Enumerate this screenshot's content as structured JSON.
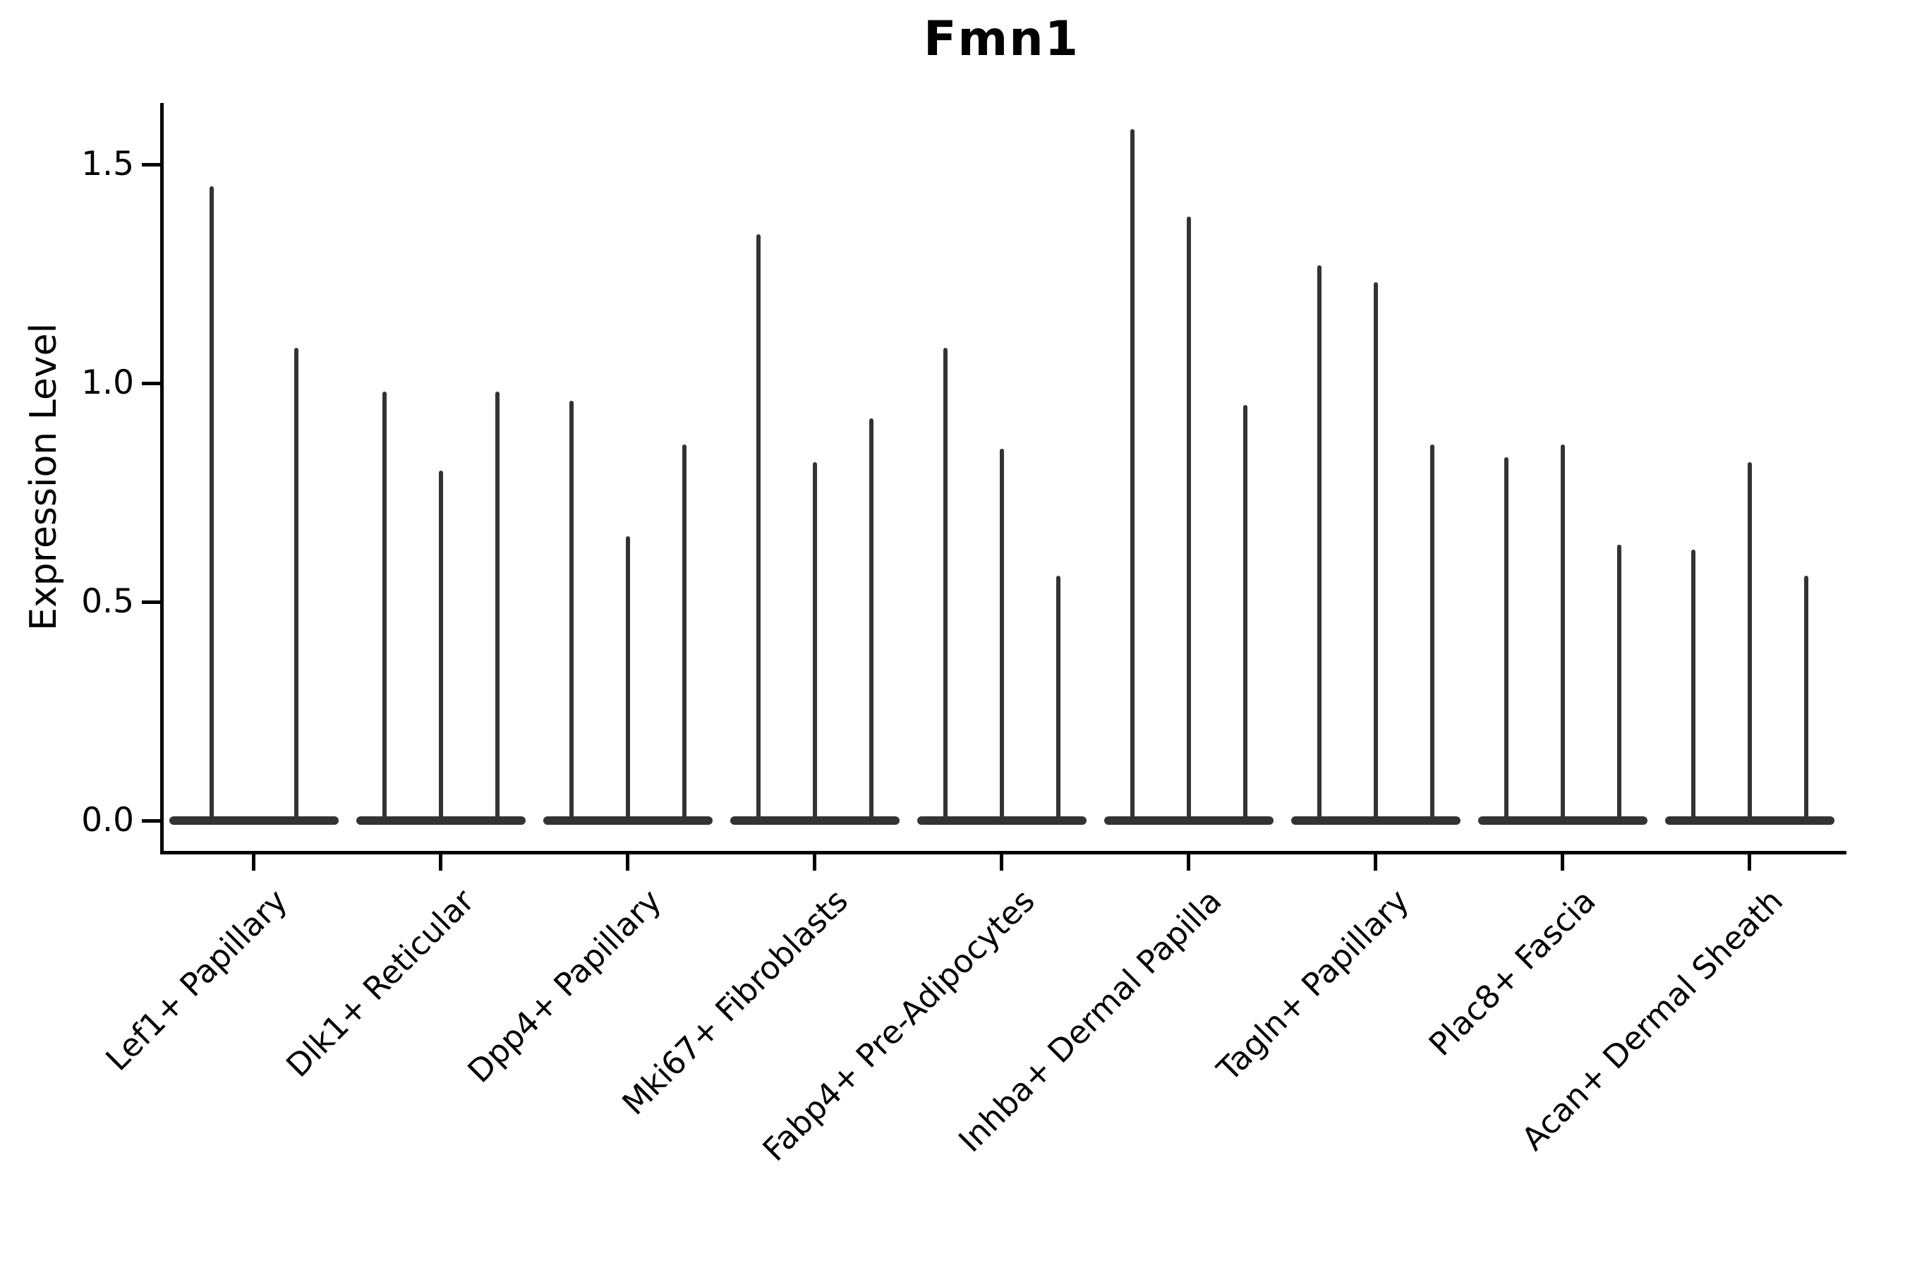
{
  "title": "Fmn1",
  "y_axis": {
    "label": "Expression Level",
    "tick_labels": [
      "0.0",
      "0.5",
      "1.0",
      "1.5"
    ]
  },
  "chart_data": {
    "type": "violin",
    "title": "Fmn1",
    "ylabel": "Expression Level",
    "xlabel": "",
    "grid": false,
    "legend": "none",
    "ylim": [
      -0.07,
      1.64
    ],
    "yticks": [
      0.0,
      0.5,
      1.0,
      1.5
    ],
    "ytick_labels": [
      "0.0",
      "0.5",
      "1.0",
      "1.5"
    ],
    "categories": [
      "Lef1+ Papillary",
      "Dlk1+ Reticular",
      "Dpp4+ Papillary",
      "Mki67+ Fibroblasts",
      "Fabp4+ Pre-Adipocytes",
      "Inhba+ Dermal Papilla",
      "Tagln+ Papillary",
      "Plac8+ Fascia",
      "Acan+ Dermal Sheath"
    ],
    "series": [
      {
        "category": "Lef1+ Papillary",
        "violin_maxima": [
          1.45,
          1.08
        ]
      },
      {
        "category": "Dlk1+ Reticular",
        "violin_maxima": [
          0.98,
          0.8,
          0.98
        ]
      },
      {
        "category": "Dpp4+ Papillary",
        "violin_maxima": [
          0.96,
          0.65,
          0.86
        ]
      },
      {
        "category": "Mki67+ Fibroblasts",
        "violin_maxima": [
          1.34,
          0.82,
          0.92
        ]
      },
      {
        "category": "Fabp4+ Pre-Adipocytes",
        "violin_maxima": [
          1.08,
          0.85,
          0.56
        ]
      },
      {
        "category": "Inhba+ Dermal Papilla",
        "violin_maxima": [
          1.58,
          1.38,
          0.95
        ]
      },
      {
        "category": "Tagln+ Papillary",
        "violin_maxima": [
          1.27,
          1.23,
          0.86
        ]
      },
      {
        "category": "Plac8+ Fascia",
        "violin_maxima": [
          0.83,
          0.86,
          0.63
        ]
      },
      {
        "category": "Acan+ Dermal Sheath",
        "violin_maxima": [
          0.62,
          0.82,
          0.56
        ]
      }
    ],
    "violins_all_min": 0.0,
    "description": "Each violin has nearly all density at 0 (flat wide base) and a thin spike rising to its maximum expression value.",
    "colors": {
      "violin": "#333333",
      "axis": "#000000",
      "background": "#ffffff"
    }
  }
}
